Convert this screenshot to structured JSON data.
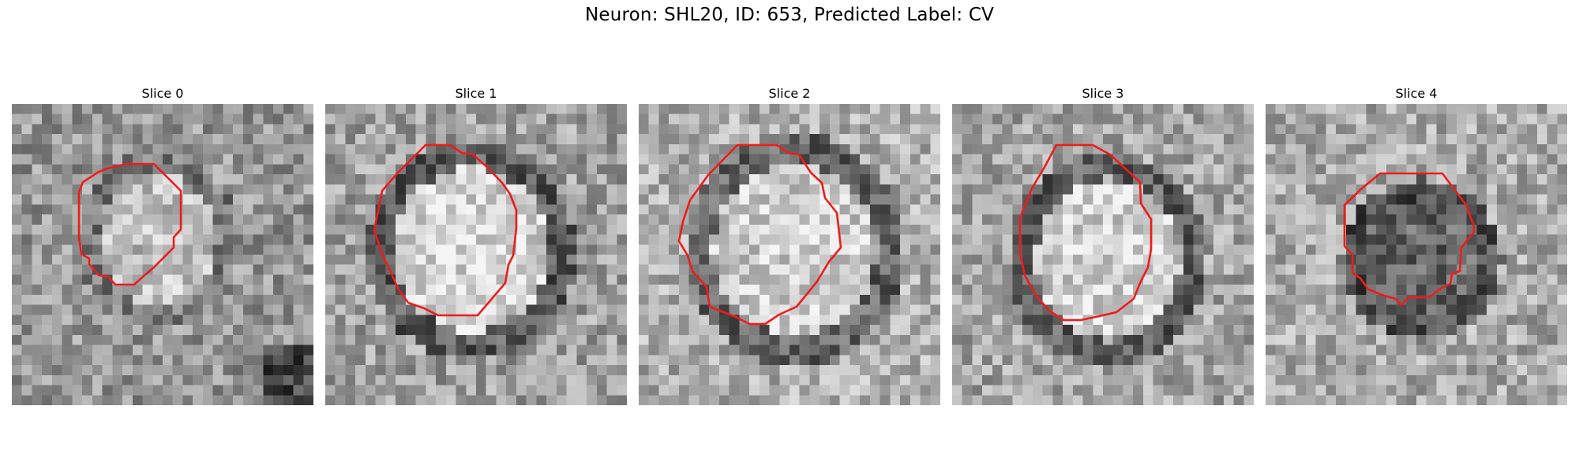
{
  "figure": {
    "title": "Neuron: SHL20, ID: 653, Predicted Label: CV"
  },
  "panels": [
    {
      "title": "Slice 0"
    },
    {
      "title": "Slice 1"
    },
    {
      "title": "Slice 2"
    },
    {
      "title": "Slice 3"
    },
    {
      "title": "Slice 4"
    }
  ],
  "colors": {
    "contour": "#ee1c1c",
    "background": "#ffffff"
  }
}
